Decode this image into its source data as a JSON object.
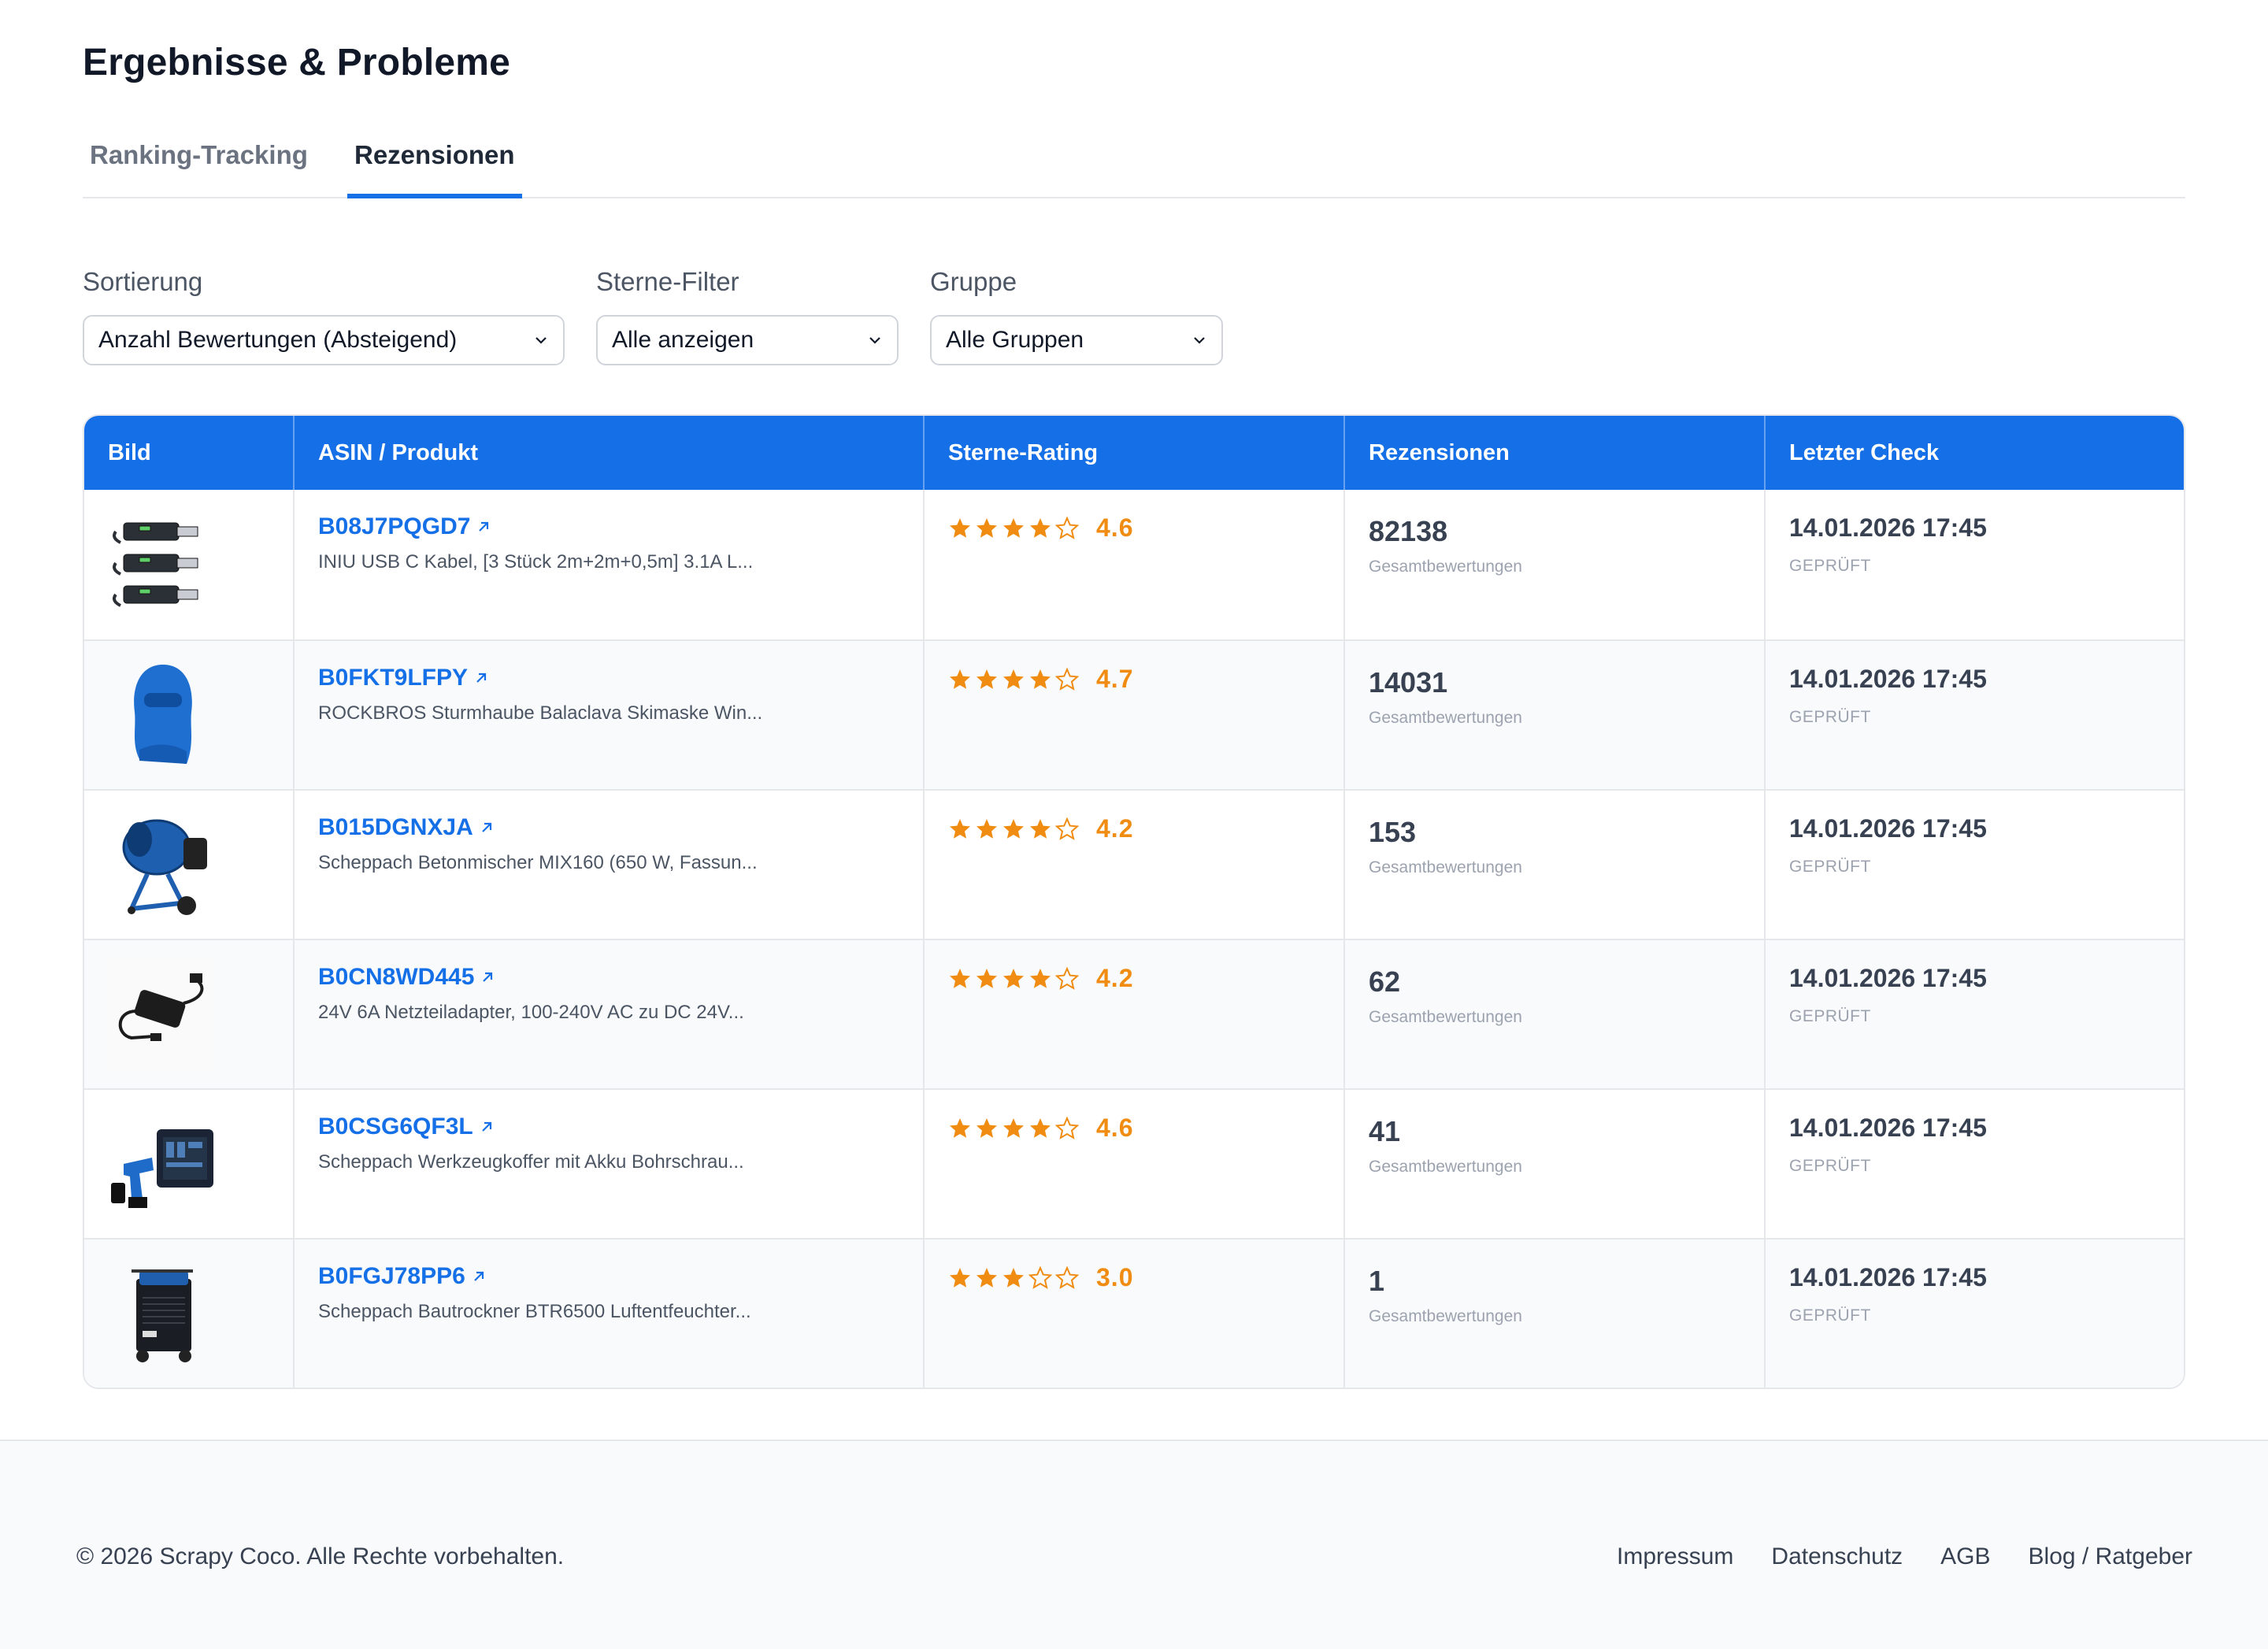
{
  "page": {
    "title": "Ergebnisse & Probleme"
  },
  "tabs": [
    {
      "label": "Ranking-Tracking",
      "active": false
    },
    {
      "label": "Rezensionen",
      "active": true
    }
  ],
  "filters": {
    "sort": {
      "label": "Sortierung",
      "value": "Anzahl Bewertungen (Absteigend)"
    },
    "stars": {
      "label": "Sterne-Filter",
      "value": "Alle anzeigen"
    },
    "group": {
      "label": "Gruppe",
      "value": "Alle Gruppen"
    }
  },
  "table": {
    "columns": [
      "Bild",
      "ASIN / Produkt",
      "Sterne-Rating",
      "Rezensionen",
      "Letzter Check"
    ],
    "rows": [
      {
        "asin": "B08J7PQGD7",
        "name": "INIU USB C Kabel, [3 Stück 2m+2m+0,5m] 3.1A L...",
        "stars": 4,
        "rating": "4.6",
        "reviews": "82138",
        "reviews_label": "Gesamtbewertungen",
        "checked": "14.01.2026 17:45",
        "status": "GEPRÜFT",
        "image": "usb-cable"
      },
      {
        "asin": "B0FKT9LFPY",
        "name": "ROCKBROS Sturmhaube Balaclava Skimaske Win...",
        "stars": 4,
        "rating": "4.7",
        "reviews": "14031",
        "reviews_label": "Gesamtbewertungen",
        "checked": "14.01.2026 17:45",
        "status": "GEPRÜFT",
        "image": "balaclava"
      },
      {
        "asin": "B015DGNXJA",
        "name": "Scheppach Betonmischer MIX160 (650 W, Fassun...",
        "stars": 4,
        "rating": "4.2",
        "reviews": "153",
        "reviews_label": "Gesamtbewertungen",
        "checked": "14.01.2026 17:45",
        "status": "GEPRÜFT",
        "image": "concrete-mixer"
      },
      {
        "asin": "B0CN8WD445",
        "name": "24V 6A Netzteiladapter, 100-240V AC zu DC 24V...",
        "stars": 4,
        "rating": "4.2",
        "reviews": "62",
        "reviews_label": "Gesamtbewertungen",
        "checked": "14.01.2026 17:45",
        "status": "GEPRÜFT",
        "image": "power-adapter"
      },
      {
        "asin": "B0CSG6QF3L",
        "name": "Scheppach Werkzeugkoffer mit Akku Bohrschrau...",
        "stars": 4,
        "rating": "4.6",
        "reviews": "41",
        "reviews_label": "Gesamtbewertungen",
        "checked": "14.01.2026 17:45",
        "status": "GEPRÜFT",
        "image": "tool-case"
      },
      {
        "asin": "B0FGJ78PP6",
        "name": "Scheppach Bautrockner BTR6500 Luftentfeuchter...",
        "stars": 3,
        "rating": "3.0",
        "reviews": "1",
        "reviews_label": "Gesamtbewertungen",
        "checked": "14.01.2026 17:45",
        "status": "GEPRÜFT",
        "image": "dehumidifier"
      }
    ]
  },
  "footer": {
    "copyright": "© 2026 Scrapy Coco. Alle Rechte vorbehalten.",
    "links": [
      "Impressum",
      "Datenschutz",
      "AGB",
      "Blog / Ratgeber"
    ]
  },
  "colors": {
    "accent": "#1570e8",
    "star": "#f08c12"
  }
}
